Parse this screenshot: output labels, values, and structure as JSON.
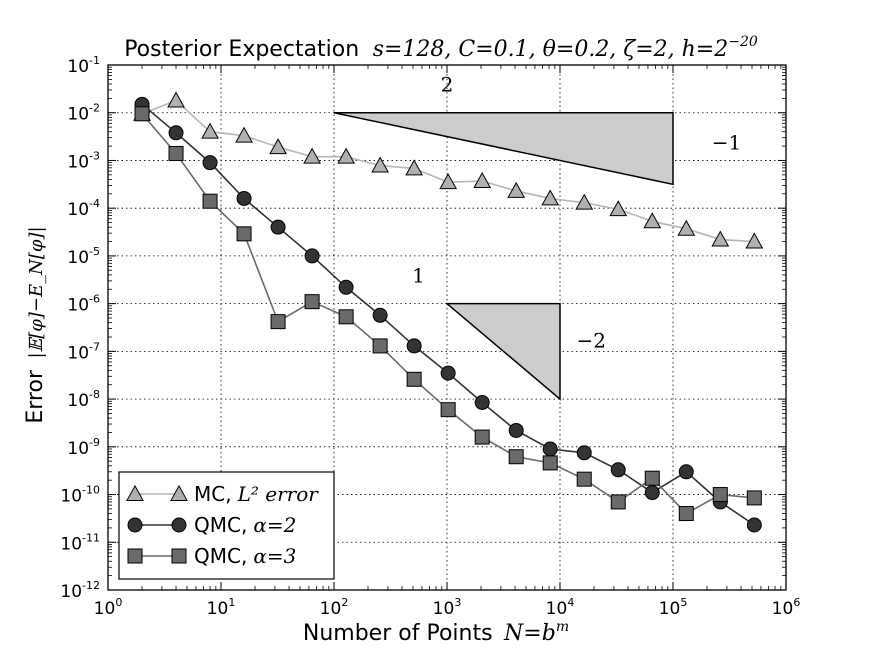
{
  "chart_data": {
    "type": "line",
    "title": "Posterior Expectation",
    "title_math": "s=128, C=0.1, θ=0.2, ζ=2, h=2",
    "title_math_exp": "−20",
    "xlabel": "Number of Points",
    "xlabel_math": "N=b",
    "xlabel_math_exp": "m",
    "ylabel": "Error",
    "ylabel_math": "|𝔼[φ]−E_N[φ]|",
    "xscale": "log",
    "yscale": "log",
    "xlim": [
      1,
      1000000
    ],
    "ylim": [
      1e-12,
      0.1
    ],
    "grid": true,
    "legend_position": "lower-left",
    "x_ticks": [
      {
        "base": "10",
        "exp": "0",
        "value": 1
      },
      {
        "base": "10",
        "exp": "1",
        "value": 10
      },
      {
        "base": "10",
        "exp": "2",
        "value": 100
      },
      {
        "base": "10",
        "exp": "3",
        "value": 1000
      },
      {
        "base": "10",
        "exp": "4",
        "value": 10000
      },
      {
        "base": "10",
        "exp": "5",
        "value": 100000
      },
      {
        "base": "10",
        "exp": "6",
        "value": 1000000
      }
    ],
    "y_ticks": [
      {
        "base": "10",
        "exp": "-12",
        "value": 1e-12
      },
      {
        "base": "10",
        "exp": "-11",
        "value": 1e-11
      },
      {
        "base": "10",
        "exp": "-10",
        "value": 1e-10
      },
      {
        "base": "10",
        "exp": "-9",
        "value": 1e-09
      },
      {
        "base": "10",
        "exp": "-8",
        "value": 1e-08
      },
      {
        "base": "10",
        "exp": "-7",
        "value": 1e-07
      },
      {
        "base": "10",
        "exp": "-6",
        "value": 1e-06
      },
      {
        "base": "10",
        "exp": "-5",
        "value": 1e-05
      },
      {
        "base": "10",
        "exp": "-4",
        "value": 0.0001
      },
      {
        "base": "10",
        "exp": "-3",
        "value": 0.001
      },
      {
        "base": "10",
        "exp": "-2",
        "value": 0.01
      },
      {
        "base": "10",
        "exp": "-1",
        "value": 0.1
      }
    ],
    "x": [
      2,
      4,
      8,
      16,
      32,
      64,
      128,
      256,
      512,
      1024,
      2048,
      4096,
      8192,
      16384,
      32768,
      65536,
      131072,
      262144,
      524288
    ],
    "series": [
      {
        "name": "MC, L² error",
        "label_text": "MC,",
        "label_math": "L² error",
        "marker": "triangle",
        "color": "#b0b0b0",
        "line_color": "#b5b5b5",
        "values": [
          0.0095,
          0.018,
          0.004,
          0.0033,
          0.0019,
          0.0012,
          0.0012,
          0.00078,
          0.00068,
          0.00035,
          0.00037,
          0.00023,
          0.00016,
          0.00013,
          9.5e-05,
          5.3e-05,
          3.7e-05,
          2.2e-05,
          2e-05
        ]
      },
      {
        "name": "QMC, α=2",
        "label_text": "QMC,",
        "label_math": "α=2",
        "marker": "circle",
        "color": "#333333",
        "line_color": "#333333",
        "values": [
          0.015,
          0.0038,
          0.0009,
          0.00016,
          4e-05,
          1e-05,
          2.2e-06,
          5.7e-07,
          1.3e-07,
          3.5e-08,
          8.5e-09,
          2.2e-09,
          9e-10,
          7.5e-10,
          3.3e-10,
          1.1e-10,
          3e-10,
          7e-11,
          2.3e-11
        ]
      },
      {
        "name": "QMC, α=3",
        "label_text": "QMC,",
        "label_math": "α=3",
        "marker": "square",
        "color": "#6a6a6a",
        "line_color": "#6a6a6a",
        "values": [
          0.0095,
          0.0014,
          0.00014,
          2.9e-05,
          4.2e-07,
          1.1e-06,
          5.3e-07,
          1.3e-07,
          2.6e-08,
          6e-09,
          1.6e-09,
          6.2e-10,
          4.6e-10,
          2.1e-10,
          7e-11,
          2.2e-10,
          4e-11,
          1e-10,
          8.5e-11
        ]
      }
    ],
    "annotations": [
      {
        "name": "slope-triangle-top",
        "corner": [
          100,
          0.01
        ],
        "x_end": 100000,
        "y_end": 0.000316,
        "run_label": "2",
        "rise_label": "−1",
        "run_label_at": [
          1000,
          0.028
        ],
        "rise_label_at": [
          220000,
          0.0017
        ]
      },
      {
        "name": "slope-triangle-bottom",
        "corner": [
          1000,
          1e-06
        ],
        "x_end": 10000,
        "y_end": 1e-08,
        "run_label": "1",
        "rise_label": "−2",
        "run_label_at": [
          560,
          2.8e-06
        ],
        "rise_label_at": [
          14000,
          1.2e-07
        ]
      }
    ]
  }
}
